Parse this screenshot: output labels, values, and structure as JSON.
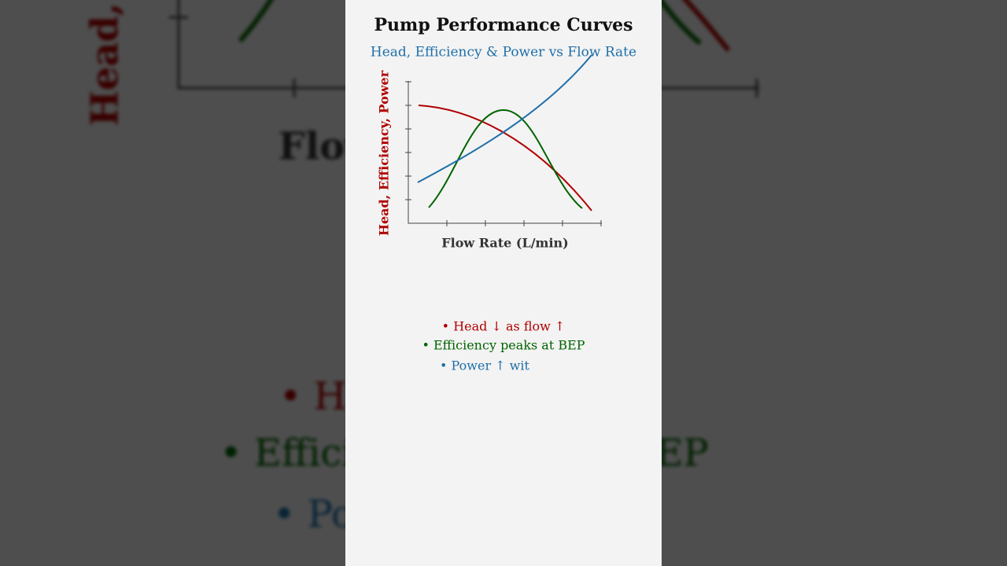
{
  "title": "Pump Performance Curves",
  "subtitle": "Head, Efficiency & Power vs Flow Rate",
  "y_axis_label": "Head, Efficiency, Power",
  "x_axis_label": "Flow Rate (L/min)",
  "bullets": [
    "• Head ↓ as flow ↑",
    "• Efficiency peaks at BEP",
    "• Power ↑ wit"
  ]
}
